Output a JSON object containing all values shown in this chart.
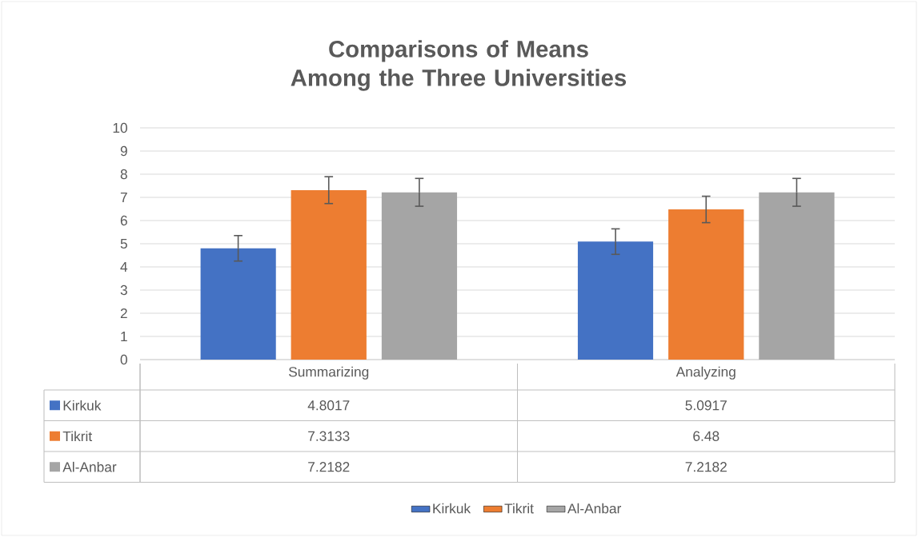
{
  "chart_data": {
    "type": "bar",
    "title": "Comparisons of Means Among the Three Universities",
    "categories": [
      "Summarizing",
      "Analyzing"
    ],
    "series": [
      {
        "name": "Kirkuk",
        "color": "#4472c4",
        "values": [
          4.8017,
          5.0917
        ],
        "errors": [
          0.55,
          0.55
        ]
      },
      {
        "name": "Tikrit",
        "color": "#ed7d31",
        "values": [
          7.3133,
          6.48
        ],
        "errors": [
          0.58,
          0.57
        ]
      },
      {
        "name": "Al-Anbar",
        "color": "#a5a5a5",
        "values": [
          7.2182,
          7.2182
        ],
        "errors": [
          0.6,
          0.6
        ]
      }
    ],
    "ylim": [
      0,
      10
    ],
    "yticks": [
      0,
      1,
      2,
      3,
      4,
      5,
      6,
      7,
      8,
      9,
      10
    ],
    "grid": "y",
    "legend": "bottom",
    "data_labels": true
  }
}
